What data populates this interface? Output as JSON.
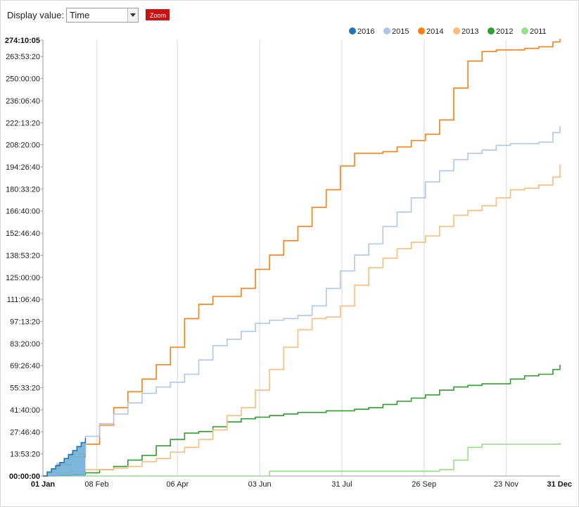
{
  "controls": {
    "display_label": "Display value:",
    "display_selected": "Time",
    "zoom_label": "Zoom"
  },
  "chart_data": {
    "type": "line",
    "xlabel": "",
    "ylabel": "",
    "x_ticks": [
      "01 Jan",
      "08 Feb",
      "06 Apr",
      "03 Jun",
      "31 Jul",
      "26 Sep",
      "23 Nov",
      "31 Dec"
    ],
    "x_ticks_days": [
      0,
      38,
      95,
      153,
      211,
      269,
      327,
      365
    ],
    "y_ticks": [
      "00:00:00",
      "13:53:20",
      "27:46:40",
      "41:40:00",
      "55:33:20",
      "69:26:40",
      "83:20:00",
      "97:13:20",
      "111:06:40",
      "125:00:00",
      "138:53:20",
      "152:46:40",
      "166:40:00",
      "180:33:20",
      "194:26:40",
      "208:20:00",
      "222:13:20",
      "236:06:40",
      "250:00:00",
      "263:53:20",
      "274:10:05"
    ],
    "y_tick_hours": [
      0,
      13.889,
      27.778,
      41.667,
      55.556,
      69.444,
      83.333,
      97.222,
      111.111,
      125,
      138.889,
      152.778,
      166.667,
      180.556,
      194.444,
      208.333,
      222.222,
      236.111,
      250,
      263.889,
      274.168
    ],
    "ylim_hours": [
      0,
      274.168
    ],
    "xlim_days": [
      0,
      365
    ],
    "grid": "vertical",
    "legend_position": "top-right",
    "series": [
      {
        "name": "2016",
        "color": "#1f77b4",
        "fill": "#6fb0d8",
        "area": true,
        "x": [
          0,
          3,
          6,
          9,
          12,
          15,
          18,
          21,
          24,
          27,
          30
        ],
        "y": [
          0,
          2.5,
          4.5,
          6.5,
          8.5,
          11,
          13.5,
          16,
          18.5,
          21,
          24
        ]
      },
      {
        "name": "2015",
        "color": "#aec7e8",
        "x": [
          0,
          10,
          20,
          30,
          40,
          50,
          60,
          70,
          80,
          90,
          100,
          110,
          120,
          130,
          140,
          150,
          160,
          170,
          180,
          190,
          200,
          210,
          220,
          230,
          240,
          250,
          260,
          270,
          280,
          290,
          300,
          310,
          320,
          330,
          340,
          350,
          360,
          365
        ],
        "y": [
          0,
          8,
          14,
          25,
          33,
          39,
          46,
          52,
          56,
          59,
          64,
          73,
          82,
          86,
          91,
          96,
          98,
          99,
          101,
          107,
          118,
          129,
          139,
          146,
          157,
          166,
          175,
          185,
          192,
          199,
          203,
          205,
          208,
          209,
          209,
          210,
          216,
          220
        ]
      },
      {
        "name": "2014",
        "color": "#ff7f0e",
        "x": [
          0,
          10,
          20,
          30,
          40,
          50,
          60,
          70,
          80,
          90,
          100,
          110,
          120,
          130,
          140,
          150,
          160,
          170,
          180,
          190,
          200,
          210,
          220,
          230,
          240,
          250,
          260,
          270,
          280,
          290,
          300,
          310,
          320,
          330,
          340,
          350,
          360,
          365
        ],
        "y": [
          0,
          7,
          12,
          20,
          32,
          43,
          53,
          61,
          70,
          81,
          99,
          108,
          113,
          113,
          118,
          130,
          139,
          148,
          157,
          169,
          180,
          195,
          203,
          203,
          204,
          207,
          211,
          215,
          224,
          244,
          261,
          267,
          268,
          268,
          269,
          270,
          273,
          275
        ]
      },
      {
        "name": "2013",
        "color": "#ffbb78",
        "x": [
          0,
          10,
          20,
          30,
          40,
          50,
          60,
          70,
          80,
          90,
          100,
          110,
          120,
          130,
          140,
          150,
          160,
          170,
          180,
          190,
          200,
          210,
          220,
          230,
          240,
          250,
          260,
          270,
          280,
          290,
          300,
          310,
          320,
          330,
          340,
          350,
          360,
          365
        ],
        "y": [
          0,
          2,
          3,
          4,
          4,
          5,
          6,
          9,
          11,
          15,
          18,
          23,
          29,
          38,
          43,
          54,
          67,
          81,
          92,
          99,
          100,
          107,
          120,
          131,
          137,
          143,
          147,
          151,
          157,
          164,
          167,
          170,
          175,
          180,
          181,
          183,
          188,
          196
        ]
      },
      {
        "name": "2012",
        "color": "#2ca02c",
        "x": [
          0,
          10,
          20,
          30,
          40,
          50,
          60,
          70,
          80,
          90,
          100,
          110,
          120,
          130,
          140,
          150,
          160,
          170,
          180,
          190,
          200,
          210,
          220,
          230,
          240,
          250,
          260,
          270,
          280,
          290,
          300,
          310,
          320,
          330,
          340,
          350,
          360,
          365
        ],
        "y": [
          0,
          0.5,
          1,
          2,
          4,
          6,
          10,
          13,
          19,
          23,
          27,
          28,
          31,
          34,
          36,
          37,
          38,
          39,
          40,
          40,
          41,
          41,
          42,
          43,
          45,
          47,
          49,
          51,
          54,
          56,
          57,
          58,
          58,
          61,
          63,
          64,
          67,
          70
        ]
      },
      {
        "name": "2011",
        "color": "#98df8a",
        "x": [
          0,
          50,
          100,
          150,
          160,
          170,
          180,
          190,
          200,
          210,
          220,
          230,
          240,
          250,
          260,
          270,
          280,
          290,
          300,
          310,
          320,
          330,
          340,
          350,
          360,
          365
        ],
        "y": [
          0,
          0,
          0,
          0,
          3,
          3,
          3,
          3,
          3,
          3,
          3,
          3,
          3,
          3,
          3,
          3,
          4,
          10,
          18,
          20,
          20,
          20,
          20,
          20,
          20,
          21
        ]
      }
    ]
  }
}
